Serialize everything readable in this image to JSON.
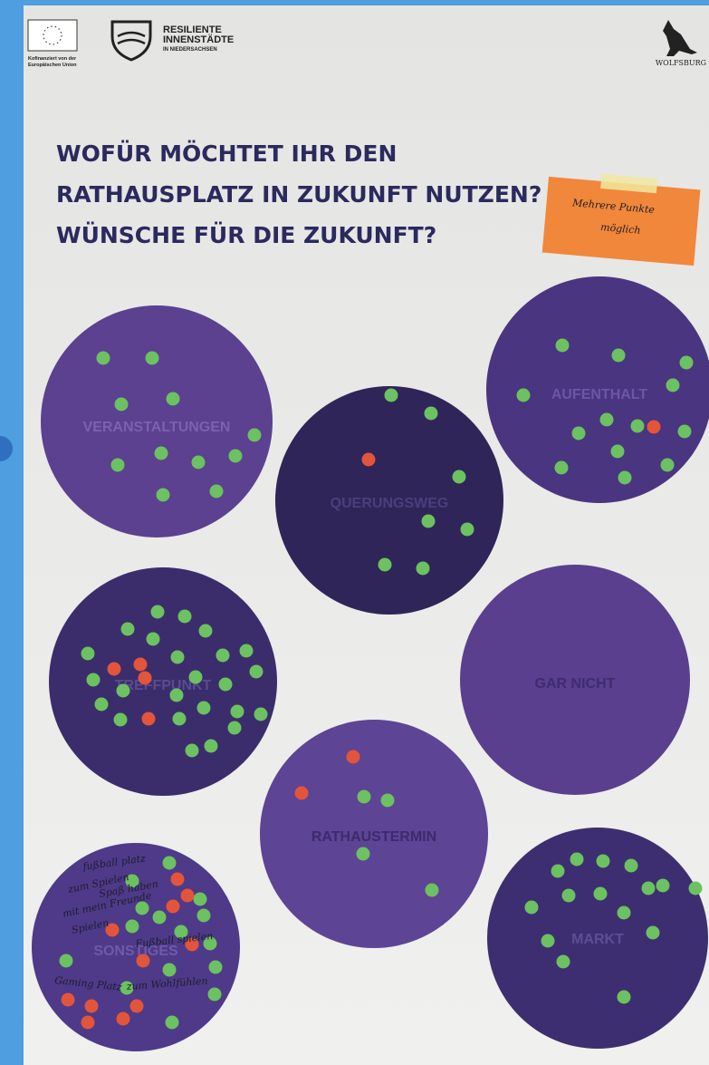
{
  "header": {
    "eu_note": [
      "Kofinanziert von der",
      "Europäischen Union"
    ],
    "logo_lines": [
      "RESILIENTE",
      "INNENSTÄDTE",
      "IN NIEDERSACHSEN"
    ],
    "city": "WOLFSBURG"
  },
  "title_lines": [
    "WOFÜR MÖCHTET IHR DEN",
    "RATHAUSPLATZ IN  ZUKUNFT NUTZEN?",
    "WÜNSCHE FÜR DIE ZUKUNFT?"
  ],
  "sticky_note": [
    "Mehrere Punkte",
    "möglich"
  ],
  "circles": [
    {
      "label": "VERANSTALTUNGEN"
    },
    {
      "label": "QUERUNGSWEG"
    },
    {
      "label": "AUFENTHALT"
    },
    {
      "label": "TREFFPUNKT"
    },
    {
      "label": "GAR NICHT"
    },
    {
      "label": "RATHAUSTERMIN"
    },
    {
      "label": "SONSTIGES"
    },
    {
      "label": "MARKT"
    }
  ],
  "handwriting": [
    "fußball platz",
    "zum Spielen",
    "Spaß haben",
    "mit mein Freunde",
    "Spielen",
    "Fußball spielen",
    "Gaming Platz",
    "zum Wohlfühlen"
  ]
}
